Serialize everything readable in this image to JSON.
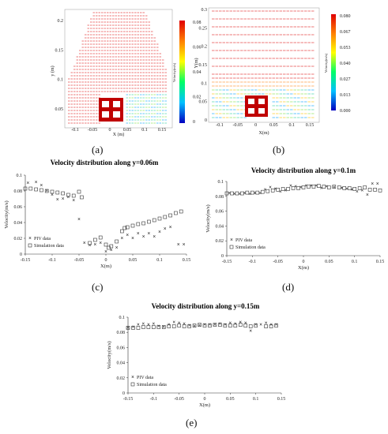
{
  "panels": {
    "a": {
      "label": "(a)",
      "x_ticks": [
        "-0.1",
        "-0.05",
        "0",
        "0.05",
        "0.1",
        "0.15"
      ],
      "y_ticks": [
        "0.2",
        "0.15",
        "0.1",
        "0.05"
      ],
      "xlabel": "X (m)",
      "ylabel": "y (m)",
      "colorbar_ticks": [
        "0.08",
        "0.06",
        "0.04",
        "0.02",
        "0"
      ],
      "colorbar_label": "Velocity(m/s)"
    },
    "b": {
      "label": "(b)",
      "x_ticks": [
        "-0.1",
        "-0.05",
        "0",
        "0.05",
        "0.1",
        "0.15"
      ],
      "y_ticks": [
        "0.3",
        "0.25",
        "0.2",
        "0.15",
        "0.1",
        "0.05",
        "0"
      ],
      "xlabel": "X(m)",
      "ylabel": "Y(m)",
      "colorbar_ticks": [
        "0.080",
        "0.067",
        "0.053",
        "0.040",
        "0.027",
        "0.013",
        "0.000"
      ],
      "colorbar_label": "Velocity(m/s)"
    },
    "c": {
      "label": "(c)"
    },
    "d": {
      "label": "(d)"
    },
    "e": {
      "label": "(e)"
    }
  },
  "chart_data": [
    {
      "id": "c",
      "type": "scatter",
      "title": "Velocity distribution along y=0.06m",
      "xlabel": "X(m)",
      "ylabel": "Velocity(m/s)",
      "xlim": [
        -0.15,
        0.15
      ],
      "ylim": [
        0,
        0.1
      ],
      "x_ticks": [
        -0.15,
        -0.1,
        -0.05,
        0,
        0.05,
        0.1,
        0.15
      ],
      "x_tick_labels": [
        "-0.15",
        "-0.1",
        "-0.05",
        "0",
        "0.05",
        "0.1",
        "0.15"
      ],
      "y_ticks": [
        0,
        0.02,
        0.04,
        0.06,
        0.08,
        0.1
      ],
      "y_tick_labels": [
        "0",
        "0.02",
        "0.04",
        "0.06",
        "0.08",
        "0.1"
      ],
      "legend_position": "bottom-left",
      "series": [
        {
          "name": "PIV data",
          "marker": "x",
          "points": [
            [
              -0.145,
              0.09
            ],
            [
              -0.13,
              0.091
            ],
            [
              -0.12,
              0.087
            ],
            [
              -0.11,
              0.08
            ],
            [
              -0.1,
              0.075
            ],
            [
              -0.09,
              0.069
            ],
            [
              -0.08,
              0.07
            ],
            [
              -0.07,
              0.072
            ],
            [
              -0.06,
              0.068
            ],
            [
              -0.05,
              0.044
            ],
            [
              -0.04,
              0.014
            ],
            [
              -0.03,
              0.011
            ],
            [
              -0.02,
              0.012
            ],
            [
              -0.01,
              0.014
            ],
            [
              0,
              0.003
            ],
            [
              0.01,
              0.005
            ],
            [
              0.02,
              0.008
            ],
            [
              0.03,
              0.02
            ],
            [
              0.04,
              0.024
            ],
            [
              0.05,
              0.02
            ],
            [
              0.06,
              0.026
            ],
            [
              0.07,
              0.022
            ],
            [
              0.08,
              0.026
            ],
            [
              0.09,
              0.022
            ],
            [
              0.1,
              0.028
            ],
            [
              0.11,
              0.032
            ],
            [
              0.12,
              0.034
            ],
            [
              0.135,
              0.012
            ],
            [
              0.145,
              0.012
            ]
          ]
        },
        {
          "name": "Simulation data",
          "marker": "square",
          "points": [
            [
              -0.15,
              0.083
            ],
            [
              -0.14,
              0.083
            ],
            [
              -0.13,
              0.082
            ],
            [
              -0.12,
              0.081
            ],
            [
              -0.11,
              0.08
            ],
            [
              -0.1,
              0.079
            ],
            [
              -0.09,
              0.078
            ],
            [
              -0.08,
              0.077
            ],
            [
              -0.07,
              0.075
            ],
            [
              -0.06,
              0.074
            ],
            [
              -0.05,
              0.079
            ],
            [
              -0.045,
              0.072
            ],
            [
              -0.03,
              0.014
            ],
            [
              -0.02,
              0.018
            ],
            [
              -0.01,
              0.021
            ],
            [
              0,
              0.012
            ],
            [
              0.005,
              0.008
            ],
            [
              0.01,
              0.01
            ],
            [
              0.02,
              0.016
            ],
            [
              0.03,
              0.029
            ],
            [
              0.035,
              0.033
            ],
            [
              0.04,
              0.034
            ],
            [
              0.05,
              0.036
            ],
            [
              0.06,
              0.038
            ],
            [
              0.07,
              0.039
            ],
            [
              0.08,
              0.041
            ],
            [
              0.09,
              0.043
            ],
            [
              0.1,
              0.045
            ],
            [
              0.11,
              0.047
            ],
            [
              0.12,
              0.049
            ],
            [
              0.13,
              0.052
            ],
            [
              0.14,
              0.054
            ]
          ]
        }
      ]
    },
    {
      "id": "d",
      "type": "scatter",
      "title": "Velocity distribution along y=0.1m",
      "xlabel": "X(m)",
      "ylabel": "Velocity(m/s)",
      "xlim": [
        -0.15,
        0.15
      ],
      "ylim": [
        0,
        0.1
      ],
      "x_ticks": [
        -0.15,
        -0.1,
        -0.05,
        0,
        0.05,
        0.1,
        0.15
      ],
      "x_tick_labels": [
        "-0.15",
        "-0.1",
        "-0.05",
        "0",
        "0.05",
        "0.1",
        "0.15"
      ],
      "y_ticks": [
        0,
        0.02,
        0.04,
        0.06,
        0.08,
        0.1
      ],
      "y_tick_labels": [
        "0",
        "0.02",
        "0.04",
        "0.06",
        "0.08",
        "0.1"
      ],
      "legend_position": "bottom-left",
      "series": [
        {
          "name": "PIV data",
          "marker": "x",
          "points": [
            [
              -0.145,
              0.084
            ],
            [
              -0.135,
              0.083
            ],
            [
              -0.125,
              0.083
            ],
            [
              -0.115,
              0.084
            ],
            [
              -0.105,
              0.083
            ],
            [
              -0.095,
              0.084
            ],
            [
              -0.085,
              0.084
            ],
            [
              -0.075,
              0.089
            ],
            [
              -0.065,
              0.092
            ],
            [
              -0.055,
              0.09
            ],
            [
              -0.045,
              0.086
            ],
            [
              -0.035,
              0.088
            ],
            [
              -0.025,
              0.094
            ],
            [
              -0.015,
              0.093
            ],
            [
              -0.005,
              0.092
            ],
            [
              0.005,
              0.094
            ],
            [
              0.015,
              0.094
            ],
            [
              0.025,
              0.094
            ],
            [
              0.035,
              0.091
            ],
            [
              0.045,
              0.093
            ],
            [
              0.06,
              0.092
            ],
            [
              0.075,
              0.091
            ],
            [
              0.085,
              0.09
            ],
            [
              0.095,
              0.089
            ],
            [
              0.105,
              0.086
            ],
            [
              0.115,
              0.088
            ],
            [
              0.125,
              0.082
            ],
            [
              0.135,
              0.097
            ],
            [
              0.145,
              0.097
            ]
          ]
        },
        {
          "name": "Simulation data",
          "marker": "square",
          "points": [
            [
              -0.15,
              0.084
            ],
            [
              -0.14,
              0.084
            ],
            [
              -0.13,
              0.084
            ],
            [
              -0.12,
              0.084
            ],
            [
              -0.11,
              0.085
            ],
            [
              -0.1,
              0.085
            ],
            [
              -0.09,
              0.085
            ],
            [
              -0.08,
              0.086
            ],
            [
              -0.07,
              0.087
            ],
            [
              -0.06,
              0.088
            ],
            [
              -0.05,
              0.089
            ],
            [
              -0.04,
              0.09
            ],
            [
              -0.03,
              0.09
            ],
            [
              -0.02,
              0.091
            ],
            [
              -0.01,
              0.091
            ],
            [
              0,
              0.092
            ],
            [
              0.01,
              0.093
            ],
            [
              0.02,
              0.093
            ],
            [
              0.03,
              0.094
            ],
            [
              0.04,
              0.093
            ],
            [
              0.05,
              0.092
            ],
            [
              0.06,
              0.093
            ],
            [
              0.07,
              0.092
            ],
            [
              0.08,
              0.091
            ],
            [
              0.09,
              0.091
            ],
            [
              0.1,
              0.09
            ],
            [
              0.11,
              0.091
            ],
            [
              0.12,
              0.092
            ],
            [
              0.13,
              0.089
            ],
            [
              0.14,
              0.089
            ],
            [
              0.15,
              0.088
            ]
          ]
        }
      ]
    },
    {
      "id": "e",
      "type": "scatter",
      "title": "Velocity distribution along y=0.15m",
      "xlabel": "X(m)",
      "ylabel": "Velocity(m/s)",
      "xlim": [
        -0.15,
        0.15
      ],
      "ylim": [
        0,
        0.1
      ],
      "x_ticks": [
        -0.15,
        -0.1,
        -0.05,
        0,
        0.05,
        0.1,
        0.15
      ],
      "x_tick_labels": [
        "-0.15",
        "-0.1",
        "-0.05",
        "0",
        "0.05",
        "0.1",
        "0.15"
      ],
      "y_ticks": [
        0,
        0.02,
        0.04,
        0.06,
        0.08,
        0.1
      ],
      "y_tick_labels": [
        "0",
        "0.02",
        "0.04",
        "0.06",
        "0.08",
        "0.1"
      ],
      "legend_position": "bottom-left",
      "series": [
        {
          "name": "PIV data",
          "marker": "x",
          "points": [
            [
              -0.15,
              0.086
            ],
            [
              -0.14,
              0.087
            ],
            [
              -0.13,
              0.09
            ],
            [
              -0.12,
              0.091
            ],
            [
              -0.11,
              0.09
            ],
            [
              -0.1,
              0.091
            ],
            [
              -0.09,
              0.088
            ],
            [
              -0.08,
              0.087
            ],
            [
              -0.07,
              0.09
            ],
            [
              -0.06,
              0.093
            ],
            [
              -0.05,
              0.092
            ],
            [
              -0.04,
              0.091
            ],
            [
              -0.03,
              0.089
            ],
            [
              -0.02,
              0.088
            ],
            [
              -0.01,
              0.089
            ],
            [
              0,
              0.09
            ],
            [
              0.01,
              0.09
            ],
            [
              0.02,
              0.09
            ],
            [
              0.03,
              0.091
            ],
            [
              0.04,
              0.09
            ],
            [
              0.05,
              0.092
            ],
            [
              0.06,
              0.091
            ],
            [
              0.07,
              0.093
            ],
            [
              0.08,
              0.092
            ],
            [
              0.09,
              0.082
            ],
            [
              0.1,
              0.09
            ],
            [
              0.11,
              0.09
            ],
            [
              0.12,
              0.092
            ],
            [
              0.13,
              0.09
            ],
            [
              0.14,
              0.09
            ]
          ]
        },
        {
          "name": "Simulation data",
          "marker": "square",
          "points": [
            [
              -0.15,
              0.086
            ],
            [
              -0.14,
              0.086
            ],
            [
              -0.13,
              0.086
            ],
            [
              -0.12,
              0.087
            ],
            [
              -0.11,
              0.087
            ],
            [
              -0.1,
              0.087
            ],
            [
              -0.09,
              0.087
            ],
            [
              -0.08,
              0.087
            ],
            [
              -0.07,
              0.088
            ],
            [
              -0.06,
              0.088
            ],
            [
              -0.05,
              0.089
            ],
            [
              -0.04,
              0.088
            ],
            [
              -0.03,
              0.088
            ],
            [
              -0.02,
              0.089
            ],
            [
              -0.01,
              0.09
            ],
            [
              0,
              0.089
            ],
            [
              0.01,
              0.089
            ],
            [
              0.02,
              0.09
            ],
            [
              0.03,
              0.09
            ],
            [
              0.04,
              0.089
            ],
            [
              0.05,
              0.089
            ],
            [
              0.06,
              0.089
            ],
            [
              0.07,
              0.09
            ],
            [
              0.08,
              0.089
            ],
            [
              0.09,
              0.088
            ],
            [
              0.1,
              0.089
            ],
            [
              0.12,
              0.088
            ],
            [
              0.13,
              0.088
            ],
            [
              0.14,
              0.089
            ]
          ]
        }
      ]
    }
  ]
}
